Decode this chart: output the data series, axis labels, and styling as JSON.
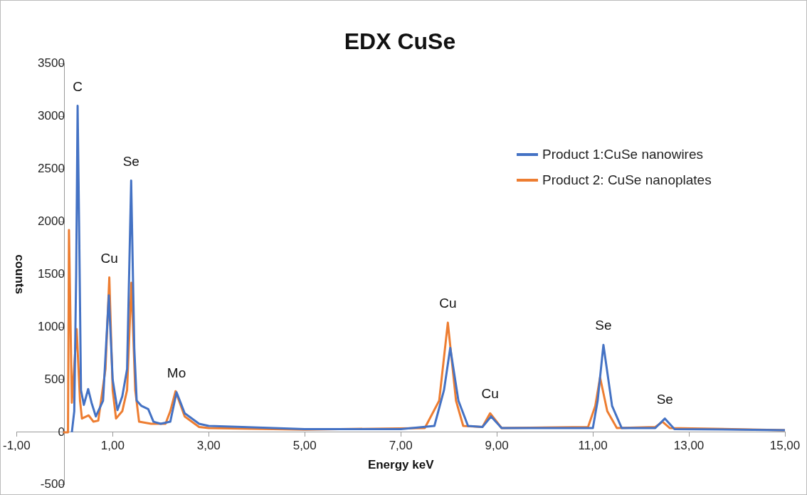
{
  "chart_data": {
    "type": "line",
    "title": "EDX CuSe",
    "xlabel": "Energy keV",
    "ylabel": "counts",
    "xlim": [
      -1,
      15
    ],
    "xticks": [
      {
        "value": -1,
        "label": "-1,00"
      },
      {
        "value": 1,
        "label": "1,00"
      },
      {
        "value": 3,
        "label": "3,00"
      },
      {
        "value": 5,
        "label": "5,00"
      },
      {
        "value": 7,
        "label": "7,00"
      },
      {
        "value": 9,
        "label": "9,00"
      },
      {
        "value": 11,
        "label": "11,00"
      },
      {
        "value": 13,
        "label": "13,00"
      },
      {
        "value": 15,
        "label": "15,00"
      }
    ],
    "ylim": [
      -500,
      3500
    ],
    "yticks": [
      -500,
      0,
      500,
      1000,
      1500,
      2000,
      2500,
      3000,
      3500
    ],
    "grid": false,
    "legend": "top right",
    "marker": "none",
    "line_style": "solid",
    "series": [
      {
        "name": "Product 1:CuSe nanowires",
        "color": "#4472c4",
        "x": [
          0.15,
          0.2,
          0.24,
          0.27,
          0.3,
          0.34,
          0.4,
          0.49,
          0.56,
          0.65,
          0.8,
          0.92,
          1.0,
          1.1,
          1.2,
          1.3,
          1.385,
          1.45,
          1.5,
          1.6,
          1.74,
          1.85,
          2.0,
          2.2,
          2.33,
          2.5,
          2.8,
          3.0,
          3.7,
          5.0,
          7.0,
          7.7,
          7.9,
          8.03,
          8.2,
          8.4,
          8.7,
          8.88,
          9.1,
          11.0,
          11.1,
          11.22,
          11.4,
          11.6,
          12.3,
          12.5,
          12.7,
          15.0
        ],
        "values": [
          0,
          200,
          1500,
          3100,
          2000,
          400,
          260,
          410,
          280,
          150,
          300,
          1300,
          500,
          210,
          340,
          600,
          2390,
          800,
          300,
          250,
          220,
          100,
          80,
          100,
          380,
          180,
          80,
          60,
          50,
          30,
          30,
          60,
          400,
          800,
          300,
          60,
          50,
          150,
          40,
          40,
          300,
          830,
          250,
          40,
          40,
          130,
          30,
          20
        ]
      },
      {
        "name": "Product 2: CuSe nanoplates",
        "color": "#ed7d31",
        "x": [
          -0.03,
          0.07,
          0.09,
          0.15,
          0.25,
          0.32,
          0.36,
          0.5,
          0.6,
          0.7,
          0.85,
          0.93,
          1.0,
          1.07,
          1.2,
          1.3,
          1.39,
          1.47,
          1.55,
          1.8,
          2.1,
          2.2,
          2.31,
          2.5,
          2.8,
          3.0,
          5.0,
          7.5,
          7.8,
          7.98,
          8.15,
          8.3,
          8.7,
          8.86,
          9.1,
          10.9,
          11.05,
          11.15,
          11.3,
          11.5,
          12.3,
          12.45,
          12.6,
          15.0
        ],
        "values": [
          0,
          0,
          1920,
          280,
          980,
          300,
          130,
          160,
          100,
          110,
          600,
          1470,
          400,
          130,
          200,
          400,
          1420,
          400,
          100,
          80,
          80,
          200,
          390,
          150,
          50,
          40,
          25,
          40,
          300,
          1040,
          300,
          60,
          50,
          180,
          40,
          50,
          250,
          520,
          200,
          40,
          50,
          100,
          40,
          20
        ]
      }
    ],
    "annotations": [
      {
        "text": "C",
        "x": 0.27,
        "y": 3100
      },
      {
        "text": "Se",
        "x": 1.385,
        "y": 2390
      },
      {
        "text": "Cu",
        "x": 0.93,
        "y": 1470
      },
      {
        "text": "Mo",
        "x": 2.33,
        "y": 380
      },
      {
        "text": "Cu",
        "x": 7.98,
        "y": 1040
      },
      {
        "text": "Cu",
        "x": 8.86,
        "y": 180
      },
      {
        "text": "Se",
        "x": 11.22,
        "y": 830
      },
      {
        "text": "Se",
        "x": 12.5,
        "y": 130
      }
    ]
  }
}
